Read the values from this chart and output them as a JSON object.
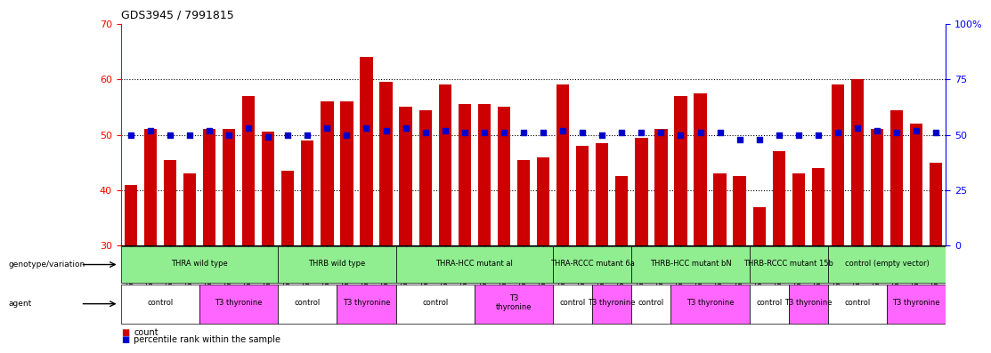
{
  "title": "GDS3945 / 7991815",
  "samples": [
    "GSM721654",
    "GSM721655",
    "GSM721656",
    "GSM721657",
    "GSM721658",
    "GSM721659",
    "GSM721660",
    "GSM721661",
    "GSM721662",
    "GSM721663",
    "GSM721664",
    "GSM721665",
    "GSM721666",
    "GSM721667",
    "GSM721668",
    "GSM721669",
    "GSM721670",
    "GSM721671",
    "GSM721672",
    "GSM721673",
    "GSM721674",
    "GSM721675",
    "GSM721676",
    "GSM721677",
    "GSM721678",
    "GSM721679",
    "GSM721680",
    "GSM721681",
    "GSM721682",
    "GSM721683",
    "GSM721684",
    "GSM721685",
    "GSM721686",
    "GSM721687",
    "GSM721688",
    "GSM721689",
    "GSM721690",
    "GSM721691",
    "GSM721692",
    "GSM721693",
    "GSM721694",
    "GSM721695"
  ],
  "bar_values": [
    41,
    51,
    45.5,
    43,
    51,
    51,
    57,
    50.5,
    43.5,
    49,
    56,
    56,
    64,
    59.5,
    55,
    54.5,
    59,
    55.5,
    55.5,
    55,
    45.5,
    46,
    59,
    48,
    48.5,
    42.5,
    49.5,
    51,
    57,
    57.5,
    43,
    42.5,
    37,
    47,
    43,
    44,
    59,
    60,
    51,
    54.5,
    52,
    45
  ],
  "percentile_values": [
    50,
    52,
    50,
    50,
    52,
    50,
    53,
    49,
    50,
    50,
    53,
    50,
    53,
    52,
    53,
    51,
    52,
    51,
    51,
    51,
    51,
    51,
    52,
    51,
    50,
    51,
    51,
    51,
    50,
    51,
    51,
    48,
    48,
    50,
    50,
    50,
    51,
    53,
    52,
    51,
    52,
    51
  ],
  "ylim_left": [
    30,
    70
  ],
  "ylim_right": [
    0,
    100
  ],
  "yticks_left": [
    30,
    40,
    50,
    60,
    70
  ],
  "yticks_right": [
    0,
    25,
    50,
    75,
    100
  ],
  "ytick_labels_right": [
    "0",
    "25",
    "50",
    "75",
    "100%"
  ],
  "hlines": [
    40,
    50,
    60
  ],
  "bar_color": "#cc0000",
  "dot_color": "#0000cc",
  "genotype_groups": [
    {
      "label": "THRA wild type",
      "start": 0,
      "end": 8,
      "color": "#90ee90"
    },
    {
      "label": "THRB wild type",
      "start": 8,
      "end": 14,
      "color": "#90ee90"
    },
    {
      "label": "THRA-HCC mutant al",
      "start": 14,
      "end": 22,
      "color": "#90ee90"
    },
    {
      "label": "THRA-RCCC mutant 6a",
      "start": 22,
      "end": 26,
      "color": "#90ee90"
    },
    {
      "label": "THRB-HCC mutant bN",
      "start": 26,
      "end": 32,
      "color": "#90ee90"
    },
    {
      "label": "THRB-RCCC mutant 15b",
      "start": 32,
      "end": 36,
      "color": "#90ee90"
    },
    {
      "label": "control (empty vector)",
      "start": 36,
      "end": 42,
      "color": "#90ee90"
    }
  ],
  "agent_groups": [
    {
      "label": "control",
      "start": 0,
      "end": 4,
      "color": "#ffffff"
    },
    {
      "label": "T3 thyronine",
      "start": 4,
      "end": 8,
      "color": "#ff66ff"
    },
    {
      "label": "control",
      "start": 8,
      "end": 11,
      "color": "#ffffff"
    },
    {
      "label": "T3 thyronine",
      "start": 11,
      "end": 14,
      "color": "#ff66ff"
    },
    {
      "label": "control",
      "start": 14,
      "end": 18,
      "color": "#ffffff"
    },
    {
      "label": "T3\nthyronine",
      "start": 18,
      "end": 22,
      "color": "#ff66ff"
    },
    {
      "label": "control",
      "start": 22,
      "end": 24,
      "color": "#ffffff"
    },
    {
      "label": "T3 thyronine",
      "start": 24,
      "end": 26,
      "color": "#ff66ff"
    },
    {
      "label": "control",
      "start": 26,
      "end": 28,
      "color": "#ffffff"
    },
    {
      "label": "T3 thyronine",
      "start": 28,
      "end": 32,
      "color": "#ff66ff"
    },
    {
      "label": "control",
      "start": 32,
      "end": 34,
      "color": "#ffffff"
    },
    {
      "label": "T3 thyronine",
      "start": 34,
      "end": 36,
      "color": "#ff66ff"
    },
    {
      "label": "control",
      "start": 36,
      "end": 39,
      "color": "#ffffff"
    },
    {
      "label": "T3 thyronine",
      "start": 39,
      "end": 42,
      "color": "#ff66ff"
    }
  ]
}
